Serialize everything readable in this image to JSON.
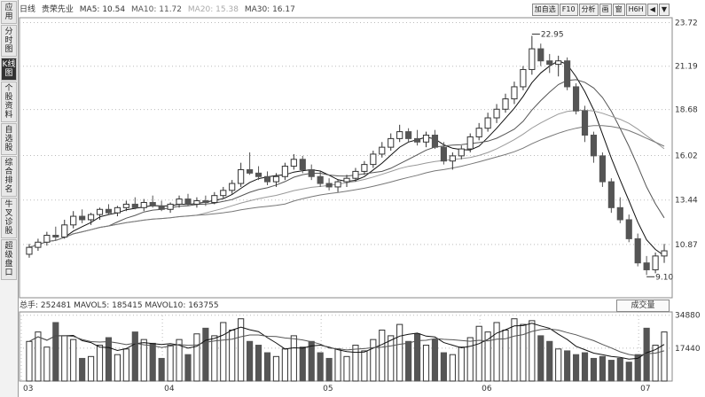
{
  "sidebar": {
    "items": [
      {
        "label": "应用"
      },
      {
        "label": "分时图"
      },
      {
        "label": "K线图"
      },
      {
        "label": "个股资料"
      },
      {
        "label": "自选股"
      },
      {
        "label": "综合排名"
      },
      {
        "label": "牛叉诊股"
      },
      {
        "label": "超级盘口"
      }
    ]
  },
  "header": {
    "period": "日线",
    "stock_name": "贵荣先业",
    "ma5": "MA5: 10.54",
    "ma10": "MA10: 11.72",
    "ma20": "MA20: 15.38",
    "ma30": "MA30: 16.17",
    "buttons": [
      "加自选",
      "F10",
      "分析",
      "画",
      "窗",
      "H6H",
      "◀",
      "▼"
    ]
  },
  "volume_header": {
    "total": "总手: 252481",
    "mavol5": "MAVOL5: 185415",
    "mavol10": "MAVOL10: 163755",
    "selector": "成交量"
  },
  "colors": {
    "up": "#333333",
    "down": "#555555",
    "ma5": "#111111",
    "ma10": "#555555",
    "ma20": "#999999",
    "ma30": "#777777",
    "grid": "#bbbbbb"
  },
  "chart_data": {
    "type": "candlestick",
    "price_axis": [
      23.72,
      21.19,
      18.68,
      16.02,
      13.44,
      10.87
    ],
    "volume_axis": [
      34880,
      17440
    ],
    "ylim": [
      8.5,
      24.0
    ],
    "xlabels": [
      "03",
      "04",
      "05",
      "06",
      "07"
    ],
    "annotations": [
      {
        "label": "22.95",
        "value": 22.95,
        "type": "high"
      },
      {
        "label": "9.10",
        "value": 9.1,
        "type": "low"
      }
    ],
    "candles": [
      [
        10.3,
        10.9,
        10.1,
        10.7
      ],
      [
        10.7,
        11.2,
        10.5,
        11.0
      ],
      [
        11.0,
        11.6,
        10.8,
        11.4
      ],
      [
        11.4,
        11.9,
        11.1,
        11.3
      ],
      [
        11.3,
        12.3,
        11.2,
        12.0
      ],
      [
        12.0,
        12.8,
        11.8,
        12.5
      ],
      [
        12.5,
        12.9,
        12.1,
        12.3
      ],
      [
        12.3,
        12.7,
        12.0,
        12.6
      ],
      [
        12.6,
        13.0,
        12.3,
        12.9
      ],
      [
        12.9,
        13.2,
        12.6,
        12.7
      ],
      [
        12.7,
        13.1,
        12.5,
        13.0
      ],
      [
        13.0,
        13.4,
        12.8,
        13.2
      ],
      [
        13.2,
        13.6,
        12.9,
        13.0
      ],
      [
        13.0,
        13.5,
        12.8,
        13.3
      ],
      [
        13.3,
        13.7,
        13.0,
        13.1
      ],
      [
        13.1,
        13.4,
        12.8,
        12.9
      ],
      [
        12.9,
        13.3,
        12.7,
        13.2
      ],
      [
        13.2,
        13.7,
        13.0,
        13.5
      ],
      [
        13.5,
        13.8,
        13.1,
        13.2
      ],
      [
        13.2,
        13.6,
        13.0,
        13.4
      ],
      [
        13.4,
        13.7,
        13.1,
        13.3
      ],
      [
        13.3,
        13.9,
        13.2,
        13.7
      ],
      [
        13.7,
        14.2,
        13.5,
        14.0
      ],
      [
        14.0,
        14.6,
        13.8,
        14.4
      ],
      [
        14.4,
        15.6,
        14.2,
        15.2
      ],
      [
        15.2,
        16.2,
        14.9,
        15.0
      ],
      [
        15.0,
        15.4,
        14.6,
        14.8
      ],
      [
        14.8,
        15.1,
        14.3,
        14.5
      ],
      [
        14.5,
        15.0,
        14.2,
        14.8
      ],
      [
        14.8,
        15.6,
        14.6,
        15.4
      ],
      [
        15.4,
        16.1,
        15.2,
        15.8
      ],
      [
        15.8,
        16.0,
        15.0,
        15.2
      ],
      [
        15.2,
        15.5,
        14.6,
        14.8
      ],
      [
        14.8,
        15.1,
        14.2,
        14.4
      ],
      [
        14.4,
        14.7,
        14.0,
        14.2
      ],
      [
        14.2,
        14.6,
        13.9,
        14.5
      ],
      [
        14.5,
        14.9,
        14.2,
        14.7
      ],
      [
        14.7,
        15.3,
        14.5,
        15.1
      ],
      [
        15.1,
        15.7,
        14.9,
        15.5
      ],
      [
        15.5,
        16.3,
        15.3,
        16.1
      ],
      [
        16.1,
        16.8,
        15.9,
        16.5
      ],
      [
        16.5,
        17.3,
        16.3,
        17.0
      ],
      [
        17.0,
        17.8,
        16.8,
        17.4
      ],
      [
        17.4,
        17.6,
        16.8,
        17.0
      ],
      [
        17.0,
        17.5,
        16.6,
        16.8
      ],
      [
        16.8,
        17.4,
        16.5,
        17.2
      ],
      [
        17.2,
        17.5,
        16.4,
        16.5
      ],
      [
        16.5,
        16.8,
        15.5,
        15.7
      ],
      [
        15.7,
        16.2,
        15.2,
        16.0
      ],
      [
        16.0,
        16.6,
        15.8,
        16.4
      ],
      [
        16.4,
        17.3,
        16.2,
        17.1
      ],
      [
        17.1,
        17.9,
        16.9,
        17.6
      ],
      [
        17.6,
        18.5,
        17.4,
        18.2
      ],
      [
        18.2,
        19.0,
        17.9,
        18.7
      ],
      [
        18.7,
        19.6,
        18.5,
        19.3
      ],
      [
        19.3,
        20.3,
        19.0,
        20.0
      ],
      [
        20.0,
        21.2,
        19.8,
        21.0
      ],
      [
        21.0,
        22.95,
        20.7,
        22.2
      ],
      [
        22.2,
        22.5,
        21.2,
        21.5
      ],
      [
        21.5,
        21.9,
        20.8,
        21.3
      ],
      [
        21.3,
        21.8,
        20.6,
        21.5
      ],
      [
        21.5,
        21.7,
        19.8,
        20.0
      ],
      [
        20.0,
        20.2,
        18.4,
        18.6
      ],
      [
        18.6,
        18.9,
        16.8,
        17.2
      ],
      [
        17.2,
        17.4,
        15.6,
        16.0
      ],
      [
        16.0,
        16.2,
        14.2,
        14.5
      ],
      [
        14.5,
        14.7,
        12.7,
        13.0
      ],
      [
        13.0,
        13.6,
        12.1,
        12.3
      ],
      [
        12.3,
        12.6,
        11.0,
        11.2
      ],
      [
        11.2,
        11.5,
        9.6,
        9.8
      ],
      [
        9.8,
        10.2,
        9.1,
        9.4
      ],
      [
        9.4,
        10.4,
        9.2,
        10.2
      ],
      [
        10.2,
        10.9,
        9.8,
        10.5
      ]
    ],
    "volumes": [
      21000,
      26000,
      18000,
      31000,
      24000,
      22000,
      12000,
      13000,
      19000,
      23000,
      14000,
      17000,
      26000,
      22000,
      20000,
      12000,
      19000,
      22000,
      14000,
      25000,
      28000,
      24000,
      31000,
      27000,
      33000,
      21000,
      19000,
      15000,
      13000,
      17000,
      24000,
      18000,
      21000,
      15000,
      12000,
      17000,
      13000,
      19000,
      16000,
      22000,
      27000,
      24000,
      30000,
      21000,
      25000,
      19000,
      22000,
      15000,
      14000,
      18000,
      23000,
      29000,
      26000,
      31000,
      27000,
      33000,
      30000,
      32000,
      24000,
      21000,
      17000,
      16000,
      14000,
      15000,
      12000,
      13000,
      11000,
      12000,
      10000,
      14000,
      28000,
      19000,
      26000
    ]
  }
}
